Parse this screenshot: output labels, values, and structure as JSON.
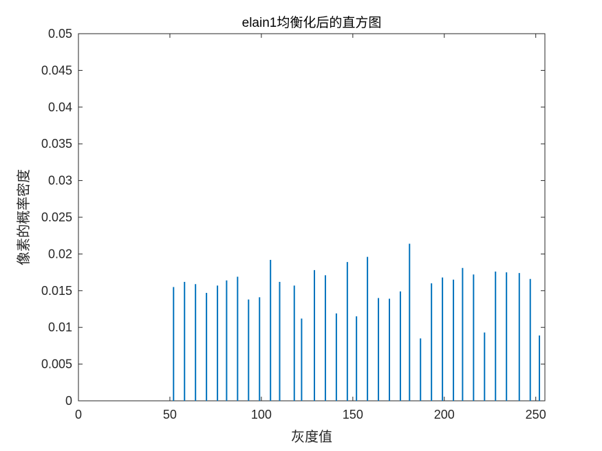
{
  "chart_data": {
    "type": "bar",
    "title": "elain1均衡化后的直方图",
    "xlabel": "灰度值",
    "ylabel": "像素的概率密度",
    "xlim": [
      0,
      255
    ],
    "ylim": [
      0,
      0.05
    ],
    "grid": false,
    "x_ticks": [
      0,
      50,
      100,
      150,
      200,
      250
    ],
    "x_tick_labels": [
      "0",
      "50",
      "100",
      "150",
      "200",
      "250"
    ],
    "y_ticks": [
      0,
      0.005,
      0.01,
      0.015,
      0.02,
      0.025,
      0.03,
      0.035,
      0.04,
      0.045,
      0.05
    ],
    "y_tick_labels": [
      "0",
      "0.005",
      "0.01",
      "0.015",
      "0.02",
      "0.025",
      "0.03",
      "0.035",
      "0.04",
      "0.045",
      "0.05"
    ],
    "series_color": "#0072BD",
    "x": [
      52,
      58,
      64,
      70,
      76,
      81,
      87,
      93,
      99,
      105,
      110,
      118,
      122,
      129,
      135,
      141,
      147,
      152,
      158,
      164,
      170,
      176,
      181,
      187,
      193,
      199,
      205,
      210,
      216,
      222,
      228,
      234,
      241,
      247,
      252
    ],
    "values": [
      0.0155,
      0.0162,
      0.0159,
      0.0147,
      0.0157,
      0.0164,
      0.0169,
      0.0138,
      0.0141,
      0.0192,
      0.0162,
      0.0157,
      0.0112,
      0.0178,
      0.0171,
      0.0119,
      0.0189,
      0.0115,
      0.0196,
      0.014,
      0.0139,
      0.0149,
      0.0214,
      0.0085,
      0.016,
      0.0168,
      0.0165,
      0.0181,
      0.0172,
      0.0093,
      0.0176,
      0.0175,
      0.0174,
      0.0166,
      0.0089
    ]
  }
}
